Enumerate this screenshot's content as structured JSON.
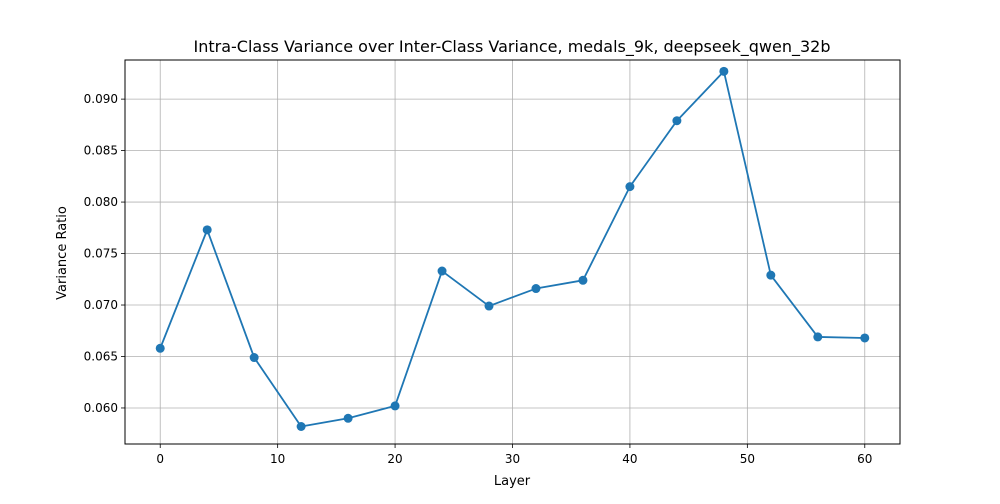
{
  "chart_data": {
    "type": "line",
    "title": "Intra-Class Variance over Inter-Class Variance, medals_9k, deepseek_qwen_32b",
    "xlabel": "Layer",
    "ylabel": "Variance Ratio",
    "xlim": [
      -3,
      63
    ],
    "ylim": [
      0.0565,
      0.0938
    ],
    "xticks": [
      0,
      10,
      20,
      30,
      40,
      50,
      60
    ],
    "xtick_labels": [
      "0",
      "10",
      "20",
      "30",
      "40",
      "50",
      "60"
    ],
    "yticks": [
      0.06,
      0.065,
      0.07,
      0.075,
      0.08,
      0.085,
      0.09
    ],
    "ytick_labels": [
      "0.060",
      "0.065",
      "0.070",
      "0.075",
      "0.080",
      "0.085",
      "0.090"
    ],
    "grid": true,
    "marker": "circle",
    "color": "#1f77b4",
    "series": [
      {
        "x": [
          0,
          4,
          8,
          12,
          16,
          20,
          24,
          28,
          32,
          36,
          40,
          44,
          48,
          52,
          56,
          60
        ],
        "y": [
          0.0658,
          0.0773,
          0.0649,
          0.0582,
          0.059,
          0.0602,
          0.0733,
          0.0699,
          0.0716,
          0.0724,
          0.0815,
          0.0879,
          0.0927,
          0.0729,
          0.0669,
          0.0668
        ]
      }
    ]
  }
}
